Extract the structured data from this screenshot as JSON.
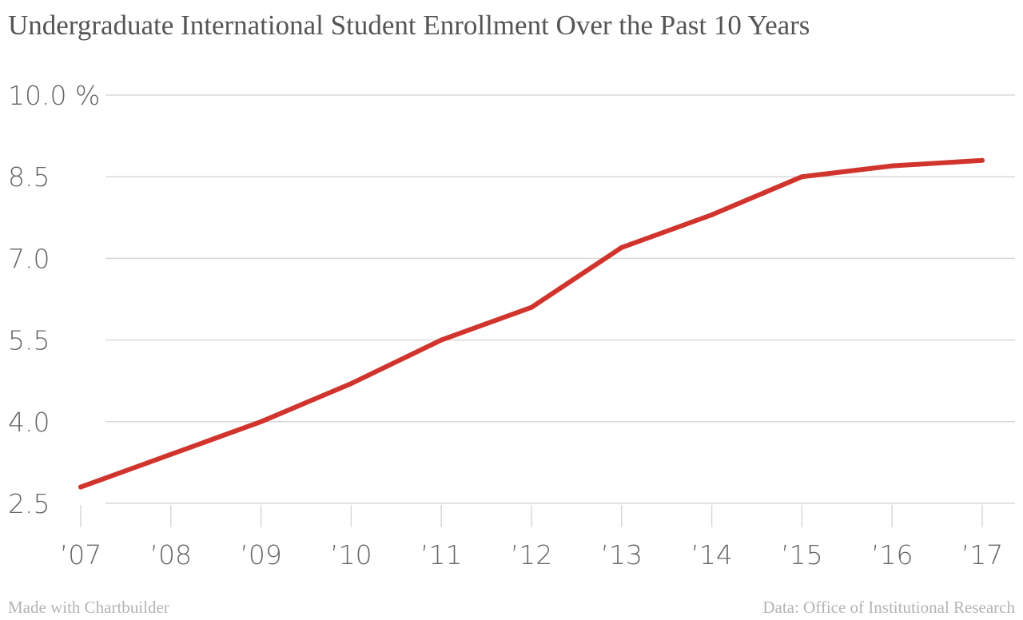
{
  "title": "Undergraduate International Student Enrollment Over the Past 10 Years",
  "footer": {
    "left": "Made with Chartbuilder",
    "right": "Data: Office of Institutional Research"
  },
  "chart_data": {
    "type": "line",
    "title": "Undergraduate International Student Enrollment Over the Past 10 Years",
    "xlabel": "",
    "ylabel": "",
    "x": [
      "’07",
      "’08",
      "’09",
      "’10",
      "’11",
      "’12",
      "’13",
      "’14",
      "’15",
      "’16",
      "’17"
    ],
    "series": [
      {
        "values": [
          2.8,
          3.4,
          4.0,
          4.7,
          5.5,
          6.1,
          7.2,
          7.8,
          8.5,
          8.7,
          8.8
        ],
        "color": "#d0342c"
      }
    ],
    "ylim": [
      2.5,
      10.0
    ],
    "yticks": [
      "2.5",
      "4.0",
      "5.5",
      "7.0",
      "8.5",
      "10.0 %"
    ],
    "ytick_values": [
      2.5,
      4.0,
      5.5,
      7.0,
      8.5,
      10.0
    ],
    "grid": true,
    "gridline_color": "#d9d9d9"
  }
}
